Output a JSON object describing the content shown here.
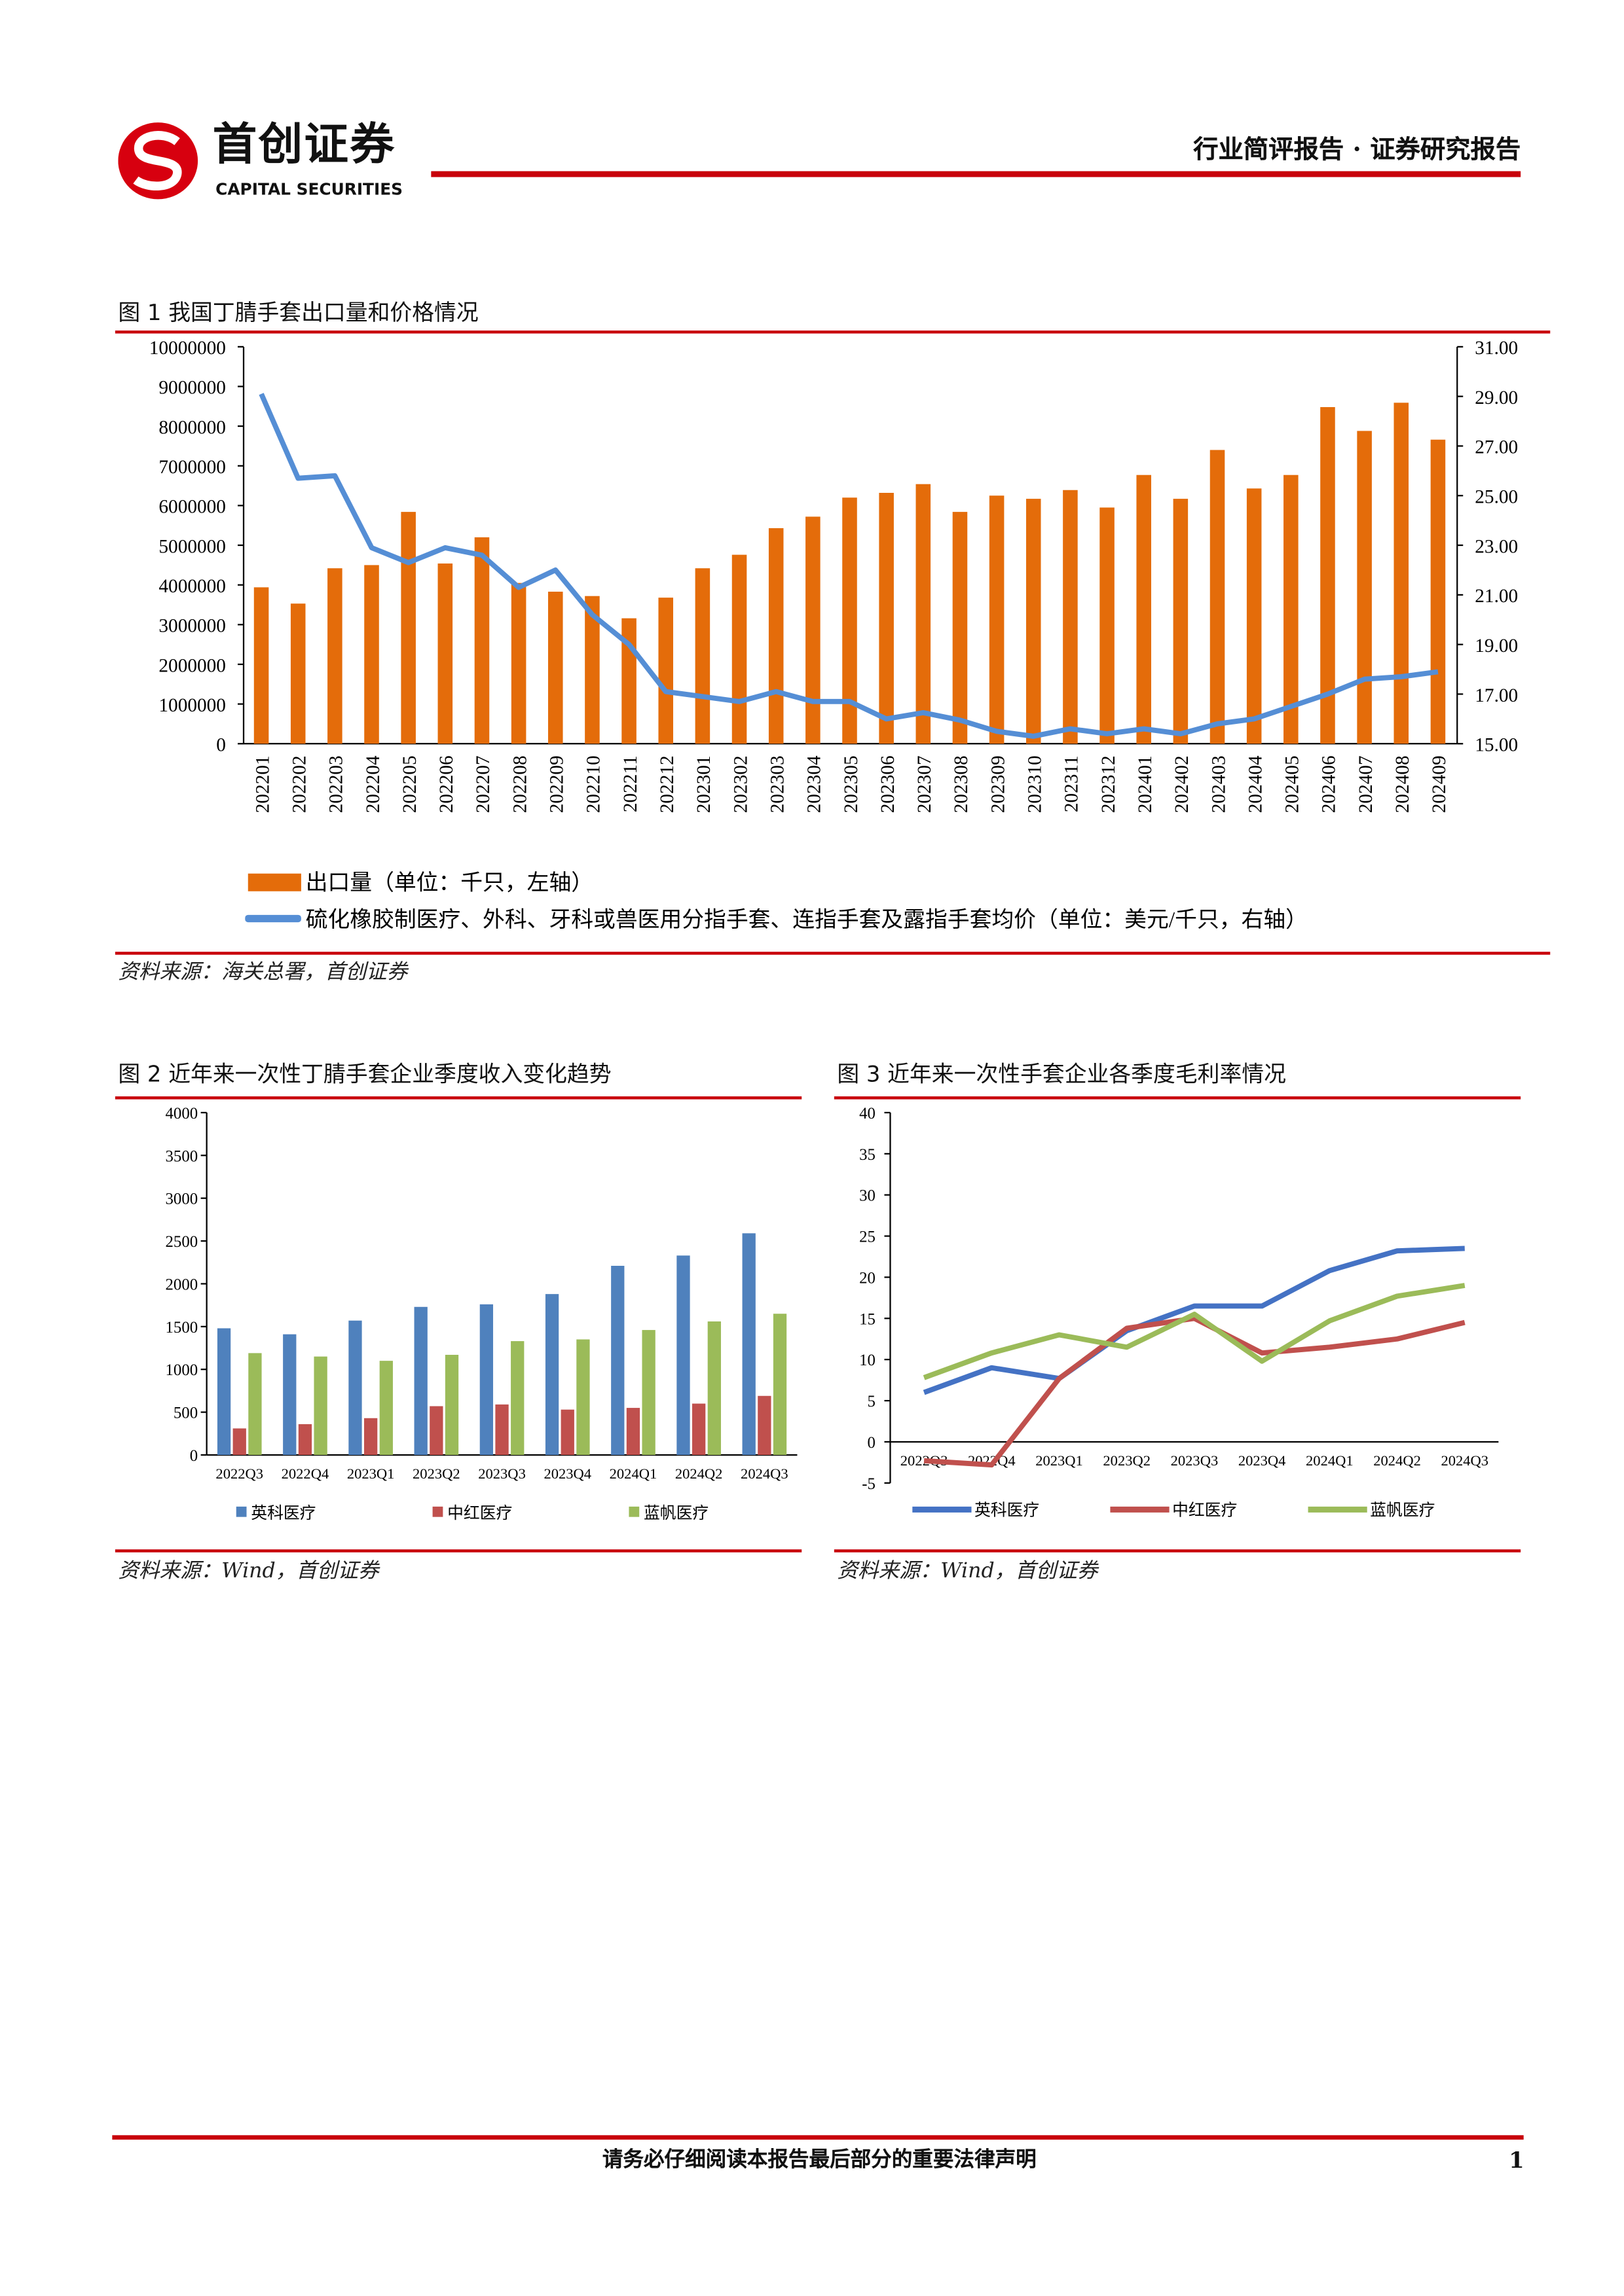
{
  "header": {
    "logo_cn": "首创证券",
    "logo_en": "CAPITAL SECURITIES",
    "report_type": "行业简评报告 · 证券研究报告",
    "brand_color": "#d7000f"
  },
  "figure1": {
    "caption": "图 1 我国丁腈手套出口量和价格情况",
    "source": "资料来源：海关总署，首创证券"
  },
  "figure2": {
    "caption": "图 2 近年来一次性丁腈手套企业季度收入变化趋势",
    "source": "资料来源：Wind，首创证券"
  },
  "figure3": {
    "caption": "图 3 近年来一次性手套企业各季度毛利率情况",
    "source": "资料来源：Wind，首创证券"
  },
  "footer": {
    "disclaimer": "请务必仔细阅读本报告最后部分的重要法律声明",
    "page_number": "1"
  },
  "chart_data": [
    {
      "type": "bar+line",
      "title": "我国丁腈手套出口量和价格情况",
      "categories": [
        "202201",
        "202202",
        "202203",
        "202204",
        "202205",
        "202206",
        "202207",
        "202208",
        "202209",
        "202210",
        "202211",
        "202212",
        "202301",
        "202302",
        "202303",
        "202304",
        "202305",
        "202306",
        "202307",
        "202308",
        "202309",
        "202310",
        "202311",
        "202312",
        "202401",
        "202402",
        "202403",
        "202404",
        "202405",
        "202406",
        "202407",
        "202408",
        "202409"
      ],
      "series": [
        {
          "name": "出口量（单位：千只，左轴）",
          "type": "bar",
          "axis": "left",
          "color": "#e46c0a",
          "values": [
            3940000,
            3530000,
            4420000,
            4500000,
            5840000,
            4540000,
            5200000,
            4050000,
            3830000,
            3720000,
            3160000,
            3680000,
            4420000,
            4760000,
            5430000,
            5720000,
            6200000,
            6320000,
            6540000,
            5840000,
            6250000,
            6170000,
            6390000,
            5950000,
            6770000,
            6170000,
            7400000,
            6430000,
            6770000,
            8480000,
            7880000,
            8590000,
            7660000
          ]
        },
        {
          "name": "硫化橡胶制医疗、外科、牙科或兽医用分指手套、连指手套及露指手套均价（单位：美元/千只，右轴）",
          "type": "line",
          "axis": "right",
          "color": "#558ed5",
          "values": [
            29.1,
            25.7,
            25.8,
            22.9,
            22.3,
            22.9,
            22.6,
            21.3,
            22.0,
            20.2,
            19.0,
            17.1,
            16.9,
            16.7,
            17.1,
            16.7,
            16.7,
            16.0,
            16.25,
            15.95,
            15.5,
            15.3,
            15.6,
            15.4,
            15.6,
            15.4,
            15.8,
            16.0,
            16.5,
            17.0,
            17.6,
            17.7,
            17.9
          ]
        }
      ],
      "y_left": {
        "range": [
          0,
          10000000
        ],
        "ticks": [
          "0",
          "1000000",
          "2000000",
          "3000000",
          "4000000",
          "5000000",
          "6000000",
          "7000000",
          "8000000",
          "9000000",
          "10000000"
        ]
      },
      "y_right": {
        "range": [
          15,
          31
        ],
        "ticks": [
          "15.00",
          "17.00",
          "19.00",
          "21.00",
          "23.00",
          "25.00",
          "27.00",
          "29.00",
          "31.00"
        ]
      },
      "legend": "bottom"
    },
    {
      "type": "bar",
      "title": "近年来一次性丁腈手套企业季度收入变化趋势",
      "categories": [
        "2022Q3",
        "2022Q4",
        "2023Q1",
        "2023Q2",
        "2023Q3",
        "2023Q4",
        "2024Q1",
        "2024Q2",
        "2024Q3"
      ],
      "series": [
        {
          "name": "英科医疗",
          "color": "#4f81bd",
          "values": [
            1480,
            1410,
            1570,
            1730,
            1760,
            1880,
            2210,
            2330,
            2590
          ]
        },
        {
          "name": "中红医疗",
          "color": "#c0504d",
          "values": [
            310,
            360,
            430,
            570,
            590,
            530,
            550,
            600,
            690
          ]
        },
        {
          "name": "蓝帆医疗",
          "color": "#9bbb59",
          "values": [
            1190,
            1150,
            1100,
            1170,
            1330,
            1350,
            1460,
            1560,
            1650
          ]
        }
      ],
      "ylim": [
        0,
        4000
      ],
      "yticks": [
        "0",
        "500",
        "1000",
        "1500",
        "2000",
        "2500",
        "3000",
        "3500",
        "4000"
      ],
      "legend": "bottom"
    },
    {
      "type": "line",
      "title": "近年来一次性手套企业各季度毛利率情况",
      "categories": [
        "2022Q3",
        "2022Q4",
        "2023Q1",
        "2023Q2",
        "2023Q3",
        "2023Q4",
        "2024Q1",
        "2024Q2",
        "2024Q3"
      ],
      "series": [
        {
          "name": "英科医疗",
          "color": "#4472c4",
          "values": [
            6,
            9,
            7.7,
            13.5,
            16.5,
            16.5,
            20.8,
            23.2,
            23.5
          ]
        },
        {
          "name": "中红医疗",
          "color": "#c0504d",
          "values": [
            -2.3,
            -2.8,
            7.7,
            13.8,
            15,
            10.8,
            11.5,
            12.5,
            14.5
          ]
        },
        {
          "name": "蓝帆医疗",
          "color": "#9bbb59",
          "values": [
            7.8,
            10.8,
            13,
            11.5,
            15.5,
            9.8,
            14.7,
            17.7,
            19
          ]
        }
      ],
      "ylim": [
        -5,
        40
      ],
      "yticks": [
        "-5",
        "0",
        "5",
        "10",
        "15",
        "20",
        "25",
        "30",
        "35",
        "40"
      ],
      "legend": "bottom"
    }
  ]
}
